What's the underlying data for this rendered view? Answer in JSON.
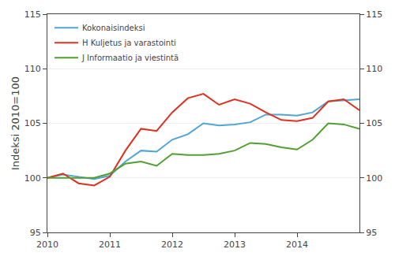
{
  "chart_data": {
    "type": "line",
    "ylabel": "Indeksi 2010=100",
    "categories": [
      "2010",
      null,
      null,
      null,
      "2011",
      null,
      null,
      null,
      "2012",
      null,
      null,
      null,
      "2013",
      null,
      null,
      null,
      "2014",
      null,
      null,
      null,
      null
    ],
    "series": [
      {
        "name": "Kokonaisindeksi",
        "color": "#4da6d6",
        "values": [
          100.0,
          100.3,
          100.1,
          99.9,
          100.2,
          101.5,
          102.5,
          102.4,
          103.5,
          104.0,
          105.0,
          104.8,
          104.9,
          105.1,
          105.8,
          105.8,
          105.7,
          106.0,
          107.0,
          107.1,
          107.2
        ]
      },
      {
        "name": "H Kuljetus ja varastointi",
        "color": "#e03020",
        "values": [
          100.0,
          100.4,
          99.5,
          99.3,
          100.1,
          102.5,
          104.5,
          104.3,
          106.0,
          107.3,
          107.7,
          106.7,
          107.2,
          106.8,
          106.0,
          105.3,
          105.2,
          105.5,
          107.0,
          107.2,
          106.2
        ]
      },
      {
        "name": "J Informaatio ja viestintä",
        "color": "#50a030",
        "values": [
          100.0,
          100.0,
          100.0,
          100.0,
          100.4,
          101.3,
          101.5,
          101.1,
          102.2,
          102.1,
          102.1,
          102.2,
          102.5,
          103.2,
          103.1,
          102.8,
          102.6,
          103.5,
          105.0,
          104.9,
          104.5
        ]
      }
    ],
    "ylim": [
      95,
      115
    ],
    "yticks": [
      95,
      100,
      105,
      110,
      115
    ],
    "y2lim": [
      95,
      115
    ],
    "y2ticks": [
      95,
      100,
      105,
      110,
      115
    ],
    "grid": true,
    "legend": "upper left"
  }
}
